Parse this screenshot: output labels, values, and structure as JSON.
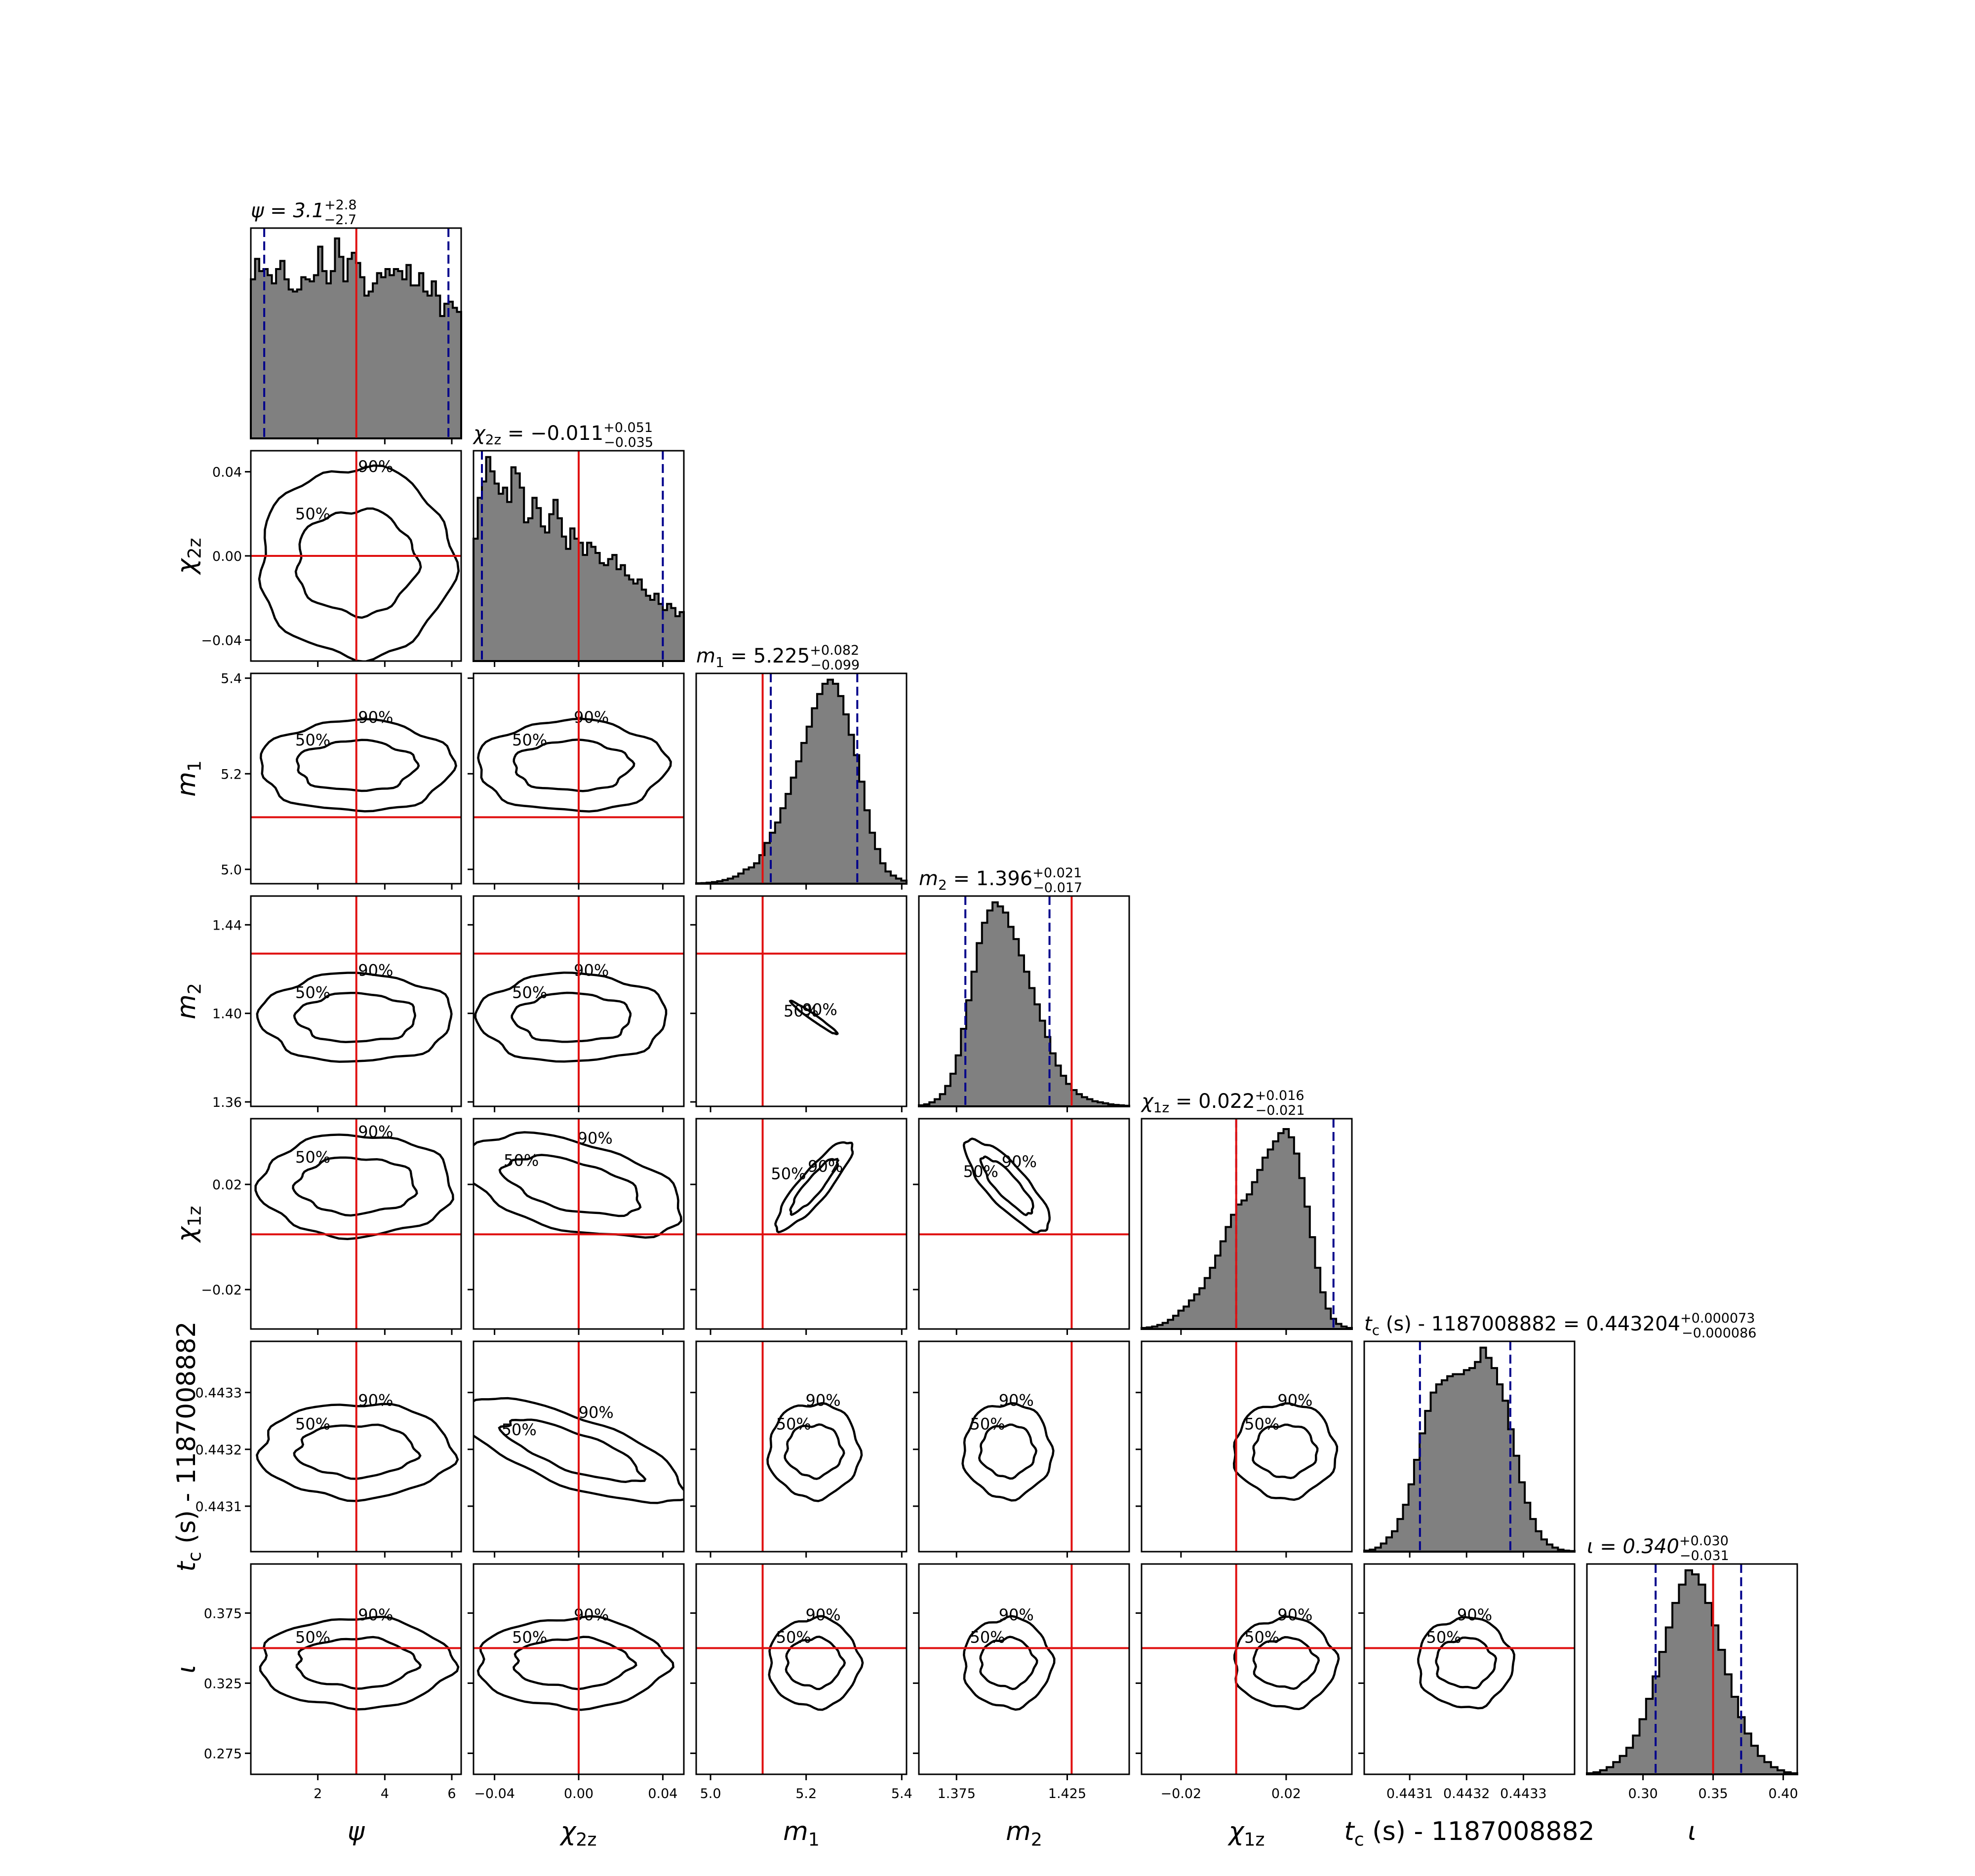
{
  "chart_data": {
    "type": "corner",
    "parameters": [
      {
        "key": "psi",
        "name": "ψ",
        "label": "ψ",
        "range": [
          0,
          6.28
        ],
        "ticks": [
          2,
          4,
          6
        ],
        "tick_labels": [
          "2",
          "4",
          "6"
        ],
        "truth": 3.15,
        "title": {
          "prefix": "ψ = 3.1",
          "sup": "+2.8",
          "sub": "−2.7"
        },
        "ci": [
          0.4,
          5.9
        ]
      },
      {
        "key": "chi2z",
        "name": "χ2z",
        "label": "χ",
        "label_sub": "2z",
        "range": [
          -0.05,
          0.05
        ],
        "ticks": [
          -0.04,
          0.0,
          0.04
        ],
        "tick_labels": [
          "−0.04",
          "0.00",
          "0.04"
        ],
        "truth": 0.0,
        "title": {
          "prefix": "χ",
          "prefix_sub": "2z",
          "prefix_rest": " = −0.011",
          "sup": "+0.051",
          "sub": "−0.035"
        },
        "ci": [
          -0.046,
          0.04
        ]
      },
      {
        "key": "m1",
        "name": "m1",
        "label": "m",
        "label_sub": "1",
        "range": [
          4.97,
          5.41
        ],
        "ticks": [
          5.0,
          5.2,
          5.4
        ],
        "tick_labels": [
          "5.0",
          "5.2",
          "5.4"
        ],
        "truth": 5.109,
        "title": {
          "prefix": "m",
          "prefix_sub": "1",
          "prefix_rest": " = 5.225",
          "sup": "+0.082",
          "sub": "−0.099"
        },
        "ci": [
          5.126,
          5.307
        ]
      },
      {
        "key": "m2",
        "name": "m2",
        "label": "m",
        "label_sub": "2",
        "range": [
          1.358,
          1.453
        ],
        "ticks": [
          1.36,
          1.4,
          1.44
        ],
        "tick_labels": [
          "1.36",
          "1.40",
          "1.44"
        ],
        "xticks": [
          1.375,
          1.425
        ],
        "xtick_labels": [
          "1.375",
          "1.425"
        ],
        "truth": 1.427,
        "title": {
          "prefix": "m",
          "prefix_sub": "2",
          "prefix_rest": " = 1.396",
          "sup": "+0.021",
          "sub": "−0.017"
        },
        "ci": [
          1.379,
          1.417
        ]
      },
      {
        "key": "chi1z",
        "name": "χ1z",
        "label": "χ",
        "label_sub": "1z",
        "range": [
          -0.035,
          0.045
        ],
        "ticks": [
          -0.02,
          0.02
        ],
        "tick_labels": [
          "−0.02",
          "0.02"
        ],
        "yticks": [
          -0.02,
          0.02
        ],
        "ytick_labels": [
          "−0.02",
          "0.02"
        ],
        "truth": 0.001,
        "title": {
          "prefix": "χ",
          "prefix_sub": "1z",
          "prefix_rest": " = 0.022",
          "sup": "+0.016",
          "sub": "−0.021"
        },
        "ci": [
          0.001,
          0.038
        ]
      },
      {
        "key": "tc",
        "name": "tc",
        "label": "t",
        "label_sub": "c",
        "label_rest": " (s) - 1187008882",
        "range": [
          0.44302,
          0.44339
        ],
        "ticks": [
          0.4431,
          0.4432,
          0.4433
        ],
        "tick_labels": [
          "0.4431",
          "0.4432",
          "0.4433"
        ],
        "truth": null,
        "title": {
          "prefix": "t",
          "prefix_sub": "c",
          "prefix_rest": " (s) - 1187008882 = 0.443204",
          "sup": "+0.000073",
          "sub": "−0.000086"
        },
        "ci": [
          0.443118,
          0.443277
        ]
      },
      {
        "key": "iota",
        "name": "ι",
        "label": "ι",
        "range": [
          0.26,
          0.41
        ],
        "ticks": [
          0.3,
          0.35,
          0.4
        ],
        "tick_labels": [
          "0.30",
          "0.35",
          "0.40"
        ],
        "yticks": [
          0.275,
          0.325,
          0.375
        ],
        "ytick_labels": [
          "0.275",
          "0.325",
          "0.375"
        ],
        "truth": 0.35,
        "title": {
          "prefix": "ι = 0.340",
          "sup": "+0.030",
          "sub": "−0.031"
        },
        "ci": [
          0.309,
          0.37
        ]
      }
    ],
    "histograms": {
      "psi": [
        0.78,
        0.88,
        0.82,
        0.83,
        0.8,
        0.76,
        0.83,
        0.87,
        0.78,
        0.73,
        0.72,
        0.73,
        0.79,
        0.78,
        0.77,
        0.8,
        0.94,
        0.82,
        0.76,
        0.82,
        0.98,
        0.89,
        0.77,
        0.88,
        0.91,
        0.86,
        0.79,
        0.7,
        0.72,
        0.76,
        0.81,
        0.79,
        0.83,
        0.8,
        0.83,
        0.82,
        0.78,
        0.85,
        0.75,
        0.75,
        0.81,
        0.72,
        0.7,
        0.77,
        0.7,
        0.6,
        0.66,
        0.67,
        0.64,
        0.62
      ],
      "chi2z": [
        0.6,
        0.8,
        0.88,
        1.0,
        0.93,
        0.87,
        0.82,
        0.85,
        0.78,
        0.95,
        0.92,
        0.85,
        0.68,
        0.7,
        0.8,
        0.75,
        0.66,
        0.63,
        0.72,
        0.79,
        0.7,
        0.61,
        0.55,
        0.65,
        0.6,
        0.58,
        0.52,
        0.58,
        0.56,
        0.53,
        0.48,
        0.47,
        0.5,
        0.52,
        0.45,
        0.47,
        0.42,
        0.4,
        0.38,
        0.4,
        0.35,
        0.32,
        0.3,
        0.33,
        0.28,
        0.25,
        0.28,
        0.26,
        0.22,
        0.24
      ],
      "m1": [
        0.002,
        0.003,
        0.005,
        0.008,
        0.012,
        0.018,
        0.025,
        0.035,
        0.05,
        0.07,
        0.08,
        0.1,
        0.14,
        0.2,
        0.25,
        0.3,
        0.37,
        0.44,
        0.52,
        0.6,
        0.69,
        0.77,
        0.86,
        0.93,
        0.98,
        1.0,
        0.98,
        0.92,
        0.83,
        0.73,
        0.63,
        0.5,
        0.36,
        0.25,
        0.17,
        0.1,
        0.06,
        0.04,
        0.025,
        0.015
      ],
      "m2": [
        0.005,
        0.01,
        0.02,
        0.035,
        0.06,
        0.1,
        0.16,
        0.25,
        0.38,
        0.52,
        0.66,
        0.8,
        0.9,
        0.96,
        1.0,
        0.98,
        0.95,
        0.88,
        0.82,
        0.74,
        0.66,
        0.58,
        0.5,
        0.42,
        0.34,
        0.26,
        0.2,
        0.15,
        0.11,
        0.08,
        0.06,
        0.045,
        0.035,
        0.025,
        0.02,
        0.015,
        0.01,
        0.007,
        0.005,
        0.003
      ],
      "chi1z": [
        0.005,
        0.008,
        0.012,
        0.02,
        0.03,
        0.045,
        0.065,
        0.09,
        0.11,
        0.14,
        0.17,
        0.2,
        0.25,
        0.3,
        0.36,
        0.43,
        0.5,
        0.56,
        0.61,
        0.63,
        0.66,
        0.72,
        0.78,
        0.84,
        0.88,
        0.92,
        0.96,
        0.98,
        0.94,
        0.86,
        0.74,
        0.6,
        0.45,
        0.3,
        0.18,
        0.1,
        0.05,
        0.025,
        0.012,
        0.005
      ],
      "tc": [
        0.005,
        0.01,
        0.02,
        0.04,
        0.07,
        0.1,
        0.16,
        0.23,
        0.33,
        0.45,
        0.58,
        0.69,
        0.78,
        0.82,
        0.84,
        0.86,
        0.87,
        0.87,
        0.89,
        0.9,
        0.93,
        1.0,
        0.95,
        0.9,
        0.82,
        0.74,
        0.6,
        0.47,
        0.34,
        0.24,
        0.16,
        0.1,
        0.06,
        0.035,
        0.02,
        0.01,
        0.005,
        0.003
      ],
      "iota": [
        0.005,
        0.01,
        0.02,
        0.035,
        0.06,
        0.09,
        0.13,
        0.19,
        0.27,
        0.37,
        0.48,
        0.6,
        0.72,
        0.84,
        0.93,
        1.0,
        0.98,
        0.93,
        0.84,
        0.73,
        0.61,
        0.49,
        0.38,
        0.28,
        0.2,
        0.14,
        0.09,
        0.06,
        0.035,
        0.02,
        0.01,
        0.005
      ]
    },
    "contour_labels": [
      "50%",
      "90%"
    ],
    "colors": {
      "hist_fill": "#808080",
      "truth": "#e01010",
      "ci": "#00008b",
      "contour": "#000000"
    }
  }
}
